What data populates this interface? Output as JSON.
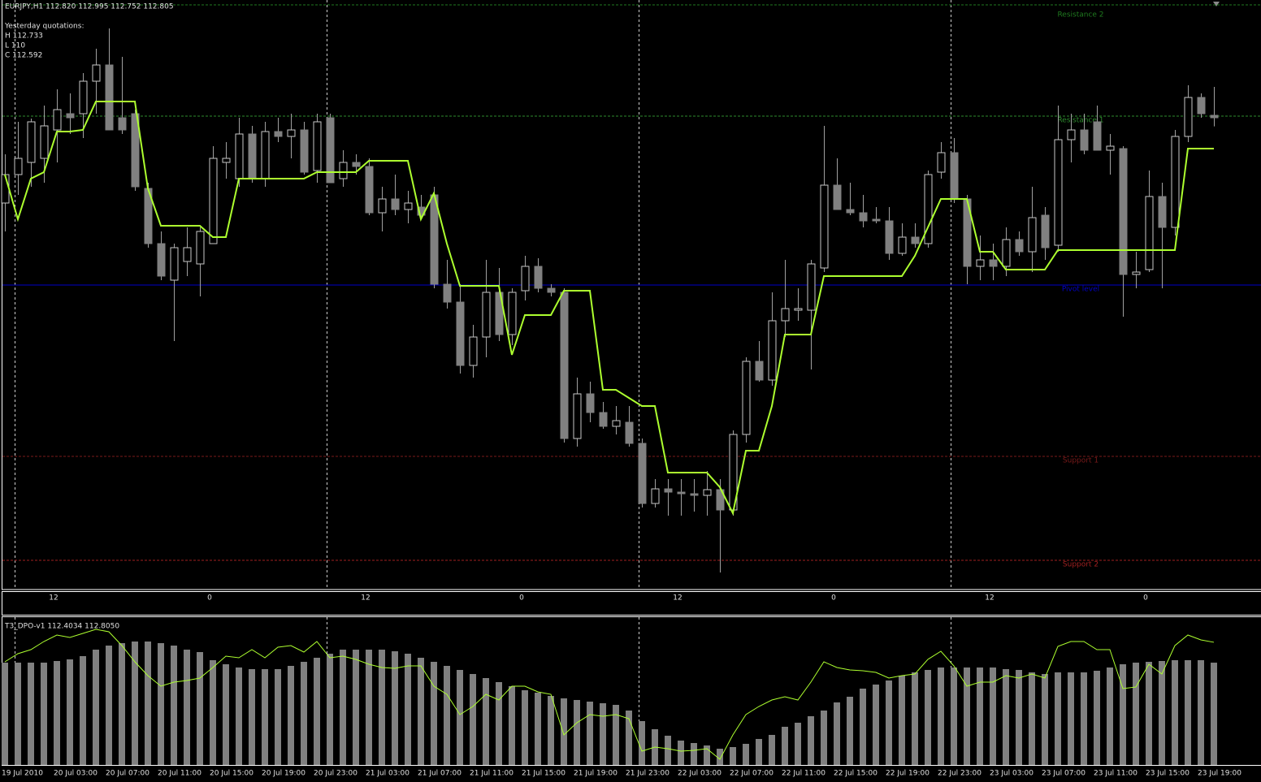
{
  "chart_data": [
    {
      "type": "candlestick",
      "title": "EURJPY,H1  112.820 112.995 112.752 112.805",
      "info": [
        "Yesterday quotations:",
        "H 112.733",
        "L 110",
        "C 112.592"
      ],
      "ylim": [
        109.895,
        113.53
      ],
      "up_color": "#000000",
      "down_color": "#808080",
      "open": [
        112.28,
        112.455,
        112.53,
        112.555,
        112.73,
        112.83,
        112.83,
        113.03,
        113.13,
        112.805,
        112.83,
        112.37,
        112.03,
        111.805,
        111.92,
        111.905,
        112.03,
        112.53,
        112.43,
        112.705,
        112.43,
        112.72,
        112.69,
        112.73,
        112.48,
        112.805,
        112.43,
        112.53,
        112.505,
        112.22,
        112.305,
        112.24,
        112.255,
        112.33,
        111.78,
        111.67,
        111.28,
        111.455,
        111.73,
        111.47,
        111.74,
        111.89,
        111.755,
        111.73,
        110.83,
        111.105,
        110.99,
        110.905,
        110.93,
        110.8,
        110.43,
        110.52,
        110.5,
        110.49,
        110.48,
        110.515,
        110.39,
        110.855,
        111.305,
        111.19,
        111.555,
        111.62,
        111.62,
        111.88,
        112.39,
        112.24,
        112.22,
        112.18,
        112.17,
        111.97,
        112.07,
        112.03,
        112.47,
        112.59,
        112.305,
        111.89,
        111.93,
        111.89,
        112.055,
        111.98,
        112.205,
        112.02,
        112.67,
        112.73,
        112.78,
        112.605,
        112.615,
        111.84,
        111.87,
        112.32,
        112.13,
        112.69,
        112.93,
        112.82
      ],
      "high": [
        112.58,
        112.78,
        112.8,
        112.88,
        112.98,
        112.955,
        113.08,
        113.23,
        113.355,
        113.18,
        112.855,
        112.405,
        112.105,
        112.03,
        112.13,
        112.13,
        112.63,
        112.655,
        112.805,
        112.755,
        112.78,
        112.805,
        112.83,
        112.78,
        112.83,
        112.83,
        112.605,
        112.58,
        112.555,
        112.38,
        112.455,
        112.355,
        112.33,
        112.38,
        111.93,
        111.78,
        111.53,
        111.93,
        111.88,
        111.755,
        111.955,
        111.94,
        111.78,
        111.755,
        111.205,
        111.18,
        111.055,
        111.03,
        111.03,
        110.83,
        110.58,
        110.58,
        110.58,
        110.58,
        110.63,
        110.58,
        110.88,
        111.33,
        111.43,
        111.73,
        111.93,
        111.755,
        111.93,
        112.755,
        112.555,
        112.405,
        112.33,
        112.255,
        112.255,
        112.155,
        112.155,
        112.48,
        112.655,
        112.68,
        112.33,
        112.08,
        112.03,
        112.13,
        112.105,
        112.38,
        112.255,
        112.88,
        112.83,
        112.83,
        112.88,
        112.705,
        112.63,
        111.98,
        112.48,
        112.405,
        112.73,
        113.005,
        112.955,
        112.995
      ],
      "low": [
        112.105,
        112.33,
        112.38,
        112.405,
        112.53,
        112.705,
        112.68,
        112.83,
        112.73,
        112.705,
        112.355,
        112.005,
        111.805,
        111.43,
        111.83,
        111.705,
        112.03,
        112.43,
        112.38,
        112.405,
        112.38,
        112.655,
        112.555,
        112.455,
        112.405,
        112.405,
        112.38,
        112.455,
        112.205,
        112.105,
        112.205,
        112.155,
        112.18,
        111.755,
        111.63,
        111.23,
        111.205,
        111.33,
        111.43,
        111.405,
        111.68,
        111.73,
        111.705,
        110.805,
        110.78,
        110.93,
        110.89,
        110.855,
        110.78,
        110.405,
        110.405,
        110.355,
        110.355,
        110.38,
        110.355,
        110.005,
        110.355,
        110.805,
        111.18,
        111.155,
        111.455,
        111.555,
        111.255,
        111.855,
        112.255,
        112.205,
        112.13,
        112.155,
        111.93,
        111.955,
        112.005,
        112.005,
        112.43,
        112.28,
        111.78,
        111.805,
        111.805,
        111.83,
        111.955,
        111.855,
        111.93,
        111.98,
        112.53,
        112.58,
        112.605,
        112.455,
        111.58,
        111.755,
        111.855,
        111.755,
        112.08,
        112.655,
        112.805,
        112.752
      ],
      "close": [
        112.455,
        112.555,
        112.78,
        112.755,
        112.855,
        112.805,
        113.03,
        113.13,
        112.73,
        112.73,
        112.38,
        112.03,
        111.83,
        112.005,
        112.005,
        112.105,
        112.555,
        112.555,
        112.705,
        112.43,
        112.72,
        112.69,
        112.73,
        112.47,
        112.78,
        112.405,
        112.53,
        112.505,
        112.22,
        112.305,
        112.24,
        112.28,
        112.205,
        111.78,
        111.67,
        111.28,
        111.455,
        111.73,
        111.47,
        111.73,
        111.89,
        111.755,
        111.73,
        110.83,
        111.105,
        110.99,
        110.905,
        110.94,
        110.8,
        110.43,
        110.52,
        110.5,
        110.49,
        110.48,
        110.515,
        110.39,
        110.855,
        111.305,
        111.19,
        111.555,
        111.63,
        111.63,
        111.905,
        112.39,
        112.24,
        112.22,
        112.17,
        112.17,
        111.97,
        112.07,
        112.03,
        112.455,
        112.59,
        112.305,
        111.89,
        111.93,
        111.89,
        112.055,
        111.98,
        112.19,
        112.005,
        112.67,
        112.73,
        112.605,
        112.605,
        112.63,
        111.84,
        111.855,
        112.32,
        112.13,
        112.69,
        112.93,
        112.83,
        112.805
      ],
      "line": {
        "color": "#adff2f",
        "values": [
          112.455,
          112.18,
          112.43,
          112.47,
          112.72,
          112.72,
          112.73,
          112.905,
          112.905,
          112.905,
          112.905,
          112.37,
          112.14,
          112.14,
          112.14,
          112.14,
          112.07,
          112.07,
          112.43,
          112.43,
          112.43,
          112.43,
          112.43,
          112.43,
          112.47,
          112.47,
          112.47,
          112.47,
          112.54,
          112.54,
          112.54,
          112.54,
          112.18,
          112.34,
          112.03,
          111.77,
          111.77,
          111.77,
          111.77,
          111.345,
          111.59,
          111.59,
          111.59,
          111.74,
          111.74,
          111.74,
          111.13,
          111.13,
          111.08,
          111.03,
          111.03,
          110.62,
          110.62,
          110.62,
          110.62,
          110.53,
          110.37,
          110.755,
          110.755,
          111.03,
          111.47,
          111.47,
          111.47,
          111.83,
          111.83,
          111.83,
          111.83,
          111.83,
          111.83,
          111.83,
          111.955,
          112.13,
          112.305,
          112.305,
          112.305,
          111.98,
          111.98,
          111.87,
          111.87,
          111.87,
          111.87,
          111.99,
          111.99,
          111.99,
          111.99,
          111.99,
          111.99,
          111.99,
          111.99,
          111.99,
          111.99,
          112.615,
          112.615,
          112.615
        ]
      },
      "levels": [
        {
          "name": "Resistance 2",
          "value": 113.5,
          "color": "#1f7a1f",
          "style": "dashed"
        },
        {
          "name": "Resistance 1",
          "value": 112.815,
          "color": "#2e8b2e",
          "style": "dashed"
        },
        {
          "name": "Pivot level",
          "value": 111.775,
          "color": "#0000c8",
          "style": "solid"
        },
        {
          "name": "Support 1",
          "value": 110.72,
          "color": "#7a1a1a",
          "style": "dashed"
        },
        {
          "name": "Support 2",
          "value": 110.08,
          "color": "#a02020",
          "style": "dashed"
        }
      ],
      "hour_labels": [
        "12",
        "0",
        "12",
        "0",
        "12",
        "0",
        "12",
        "0"
      ]
    },
    {
      "type": "bar",
      "title": "T3_DPO-v1 112.4034 112.8050",
      "ylim": [
        110.388,
        113.3
      ],
      "color": "#808080",
      "values": [
        112.404,
        112.404,
        112.404,
        112.404,
        112.436,
        112.468,
        112.532,
        112.66,
        112.74,
        112.788,
        112.82,
        112.82,
        112.788,
        112.74,
        112.66,
        112.612,
        112.452,
        112.372,
        112.308,
        112.276,
        112.276,
        112.276,
        112.34,
        112.42,
        112.5,
        112.58,
        112.66,
        112.66,
        112.66,
        112.66,
        112.628,
        112.58,
        112.5,
        112.42,
        112.34,
        112.26,
        112.18,
        112.1,
        112.02,
        111.94,
        111.86,
        111.812,
        111.748,
        111.7,
        111.668,
        111.636,
        111.604,
        111.572,
        111.46,
        111.252,
        111.092,
        110.964,
        110.868,
        110.82,
        110.772,
        110.708,
        110.74,
        110.804,
        110.9,
        110.98,
        111.14,
        111.22,
        111.348,
        111.46,
        111.62,
        111.732,
        111.892,
        111.972,
        112.052,
        112.148,
        112.212,
        112.26,
        112.308,
        112.308,
        112.308,
        112.308,
        112.308,
        112.276,
        112.26,
        112.212,
        112.18,
        112.212,
        112.212,
        112.212,
        112.244,
        112.308,
        112.372,
        112.404,
        112.42,
        112.436,
        112.452,
        112.452,
        112.452,
        112.4034
      ],
      "line": {
        "color": "#adff2f",
        "values": [
          112.42,
          112.58,
          112.66,
          112.82,
          112.948,
          112.9,
          112.98,
          113.06,
          113.012,
          112.74,
          112.42,
          112.148,
          111.94,
          112.02,
          112.052,
          112.1,
          112.308,
          112.532,
          112.5,
          112.66,
          112.5,
          112.708,
          112.74,
          112.612,
          112.82,
          112.5,
          112.532,
          112.468,
          112.372,
          112.308,
          112.292,
          112.34,
          112.34,
          111.94,
          111.78,
          111.38,
          111.54,
          111.78,
          111.668,
          111.94,
          111.94,
          111.828,
          111.78,
          110.98,
          111.22,
          111.38,
          111.348,
          111.38,
          111.3,
          110.66,
          110.74,
          110.708,
          110.66,
          110.676,
          110.708,
          110.5,
          110.98,
          111.38,
          111.54,
          111.668,
          111.732,
          111.668,
          112.02,
          112.42,
          112.308,
          112.26,
          112.244,
          112.212,
          112.1,
          112.148,
          112.18,
          112.468,
          112.628,
          112.34,
          111.94,
          112.02,
          112.02,
          112.148,
          112.1,
          112.18,
          112.1,
          112.724,
          112.82,
          112.82,
          112.66,
          112.66,
          111.892,
          111.924,
          112.372,
          112.18,
          112.74,
          112.948,
          112.852,
          112.805
        ]
      },
      "x_labels": [
        "19 Jul 2010",
        "20 Jul 03:00",
        "20 Jul 07:00",
        "20 Jul 11:00",
        "20 Jul 15:00",
        "20 Jul 19:00",
        "20 Jul 23:00",
        "21 Jul 03:00",
        "21 Jul 07:00",
        "21 Jul 11:00",
        "21 Jul 15:00",
        "21 Jul 19:00",
        "21 Jul 23:00",
        "22 Jul 03:00",
        "22 Jul 07:00",
        "22 Jul 11:00",
        "22 Jul 15:00",
        "22 Jul 19:00",
        "22 Jul 23:00",
        "23 Jul 03:00",
        "23 Jul 07:00",
        "23 Jul 11:00",
        "23 Jul 15:00",
        "23 Jul 19:00"
      ]
    }
  ]
}
